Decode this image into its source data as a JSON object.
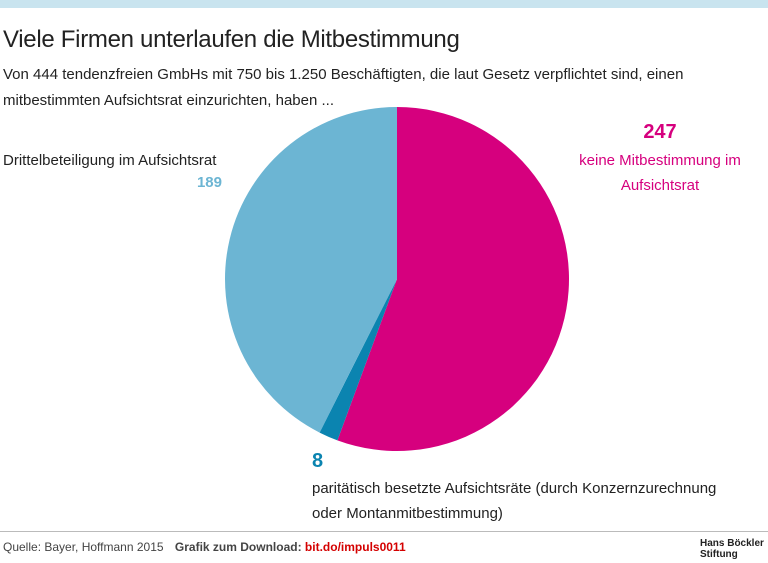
{
  "chart_data": {
    "type": "pie",
    "title": "Viele Firmen unterlaufen die Mitbestimmung",
    "subtitle": "Von 444 tendenzfreien GmbHs mit 750 bis 1.250 Beschäftigten, die laut Gesetz verpflichtet sind, einen mitbestimmten Aufsichtsrat einzurichten, haben ...",
    "categories": [
      "keine Mitbestimmung im Aufsichtsrat",
      "paritätisch besetzte Aufsichtsräte (durch Konzernzurechnung oder Montanmitbestimmung)",
      "Drittelbeteiligung im Aufsichtsrat"
    ],
    "values": [
      247,
      8,
      189
    ],
    "colors": [
      "#d6007e",
      "#0b84b0",
      "#6cb5d3"
    ],
    "source": "Quelle:  Bayer, Hoffmann 2015",
    "download_label": "Grafik zum Download:",
    "download_link": "bit.do/impuls0011",
    "logo": "Hans Böckler Stiftung"
  }
}
